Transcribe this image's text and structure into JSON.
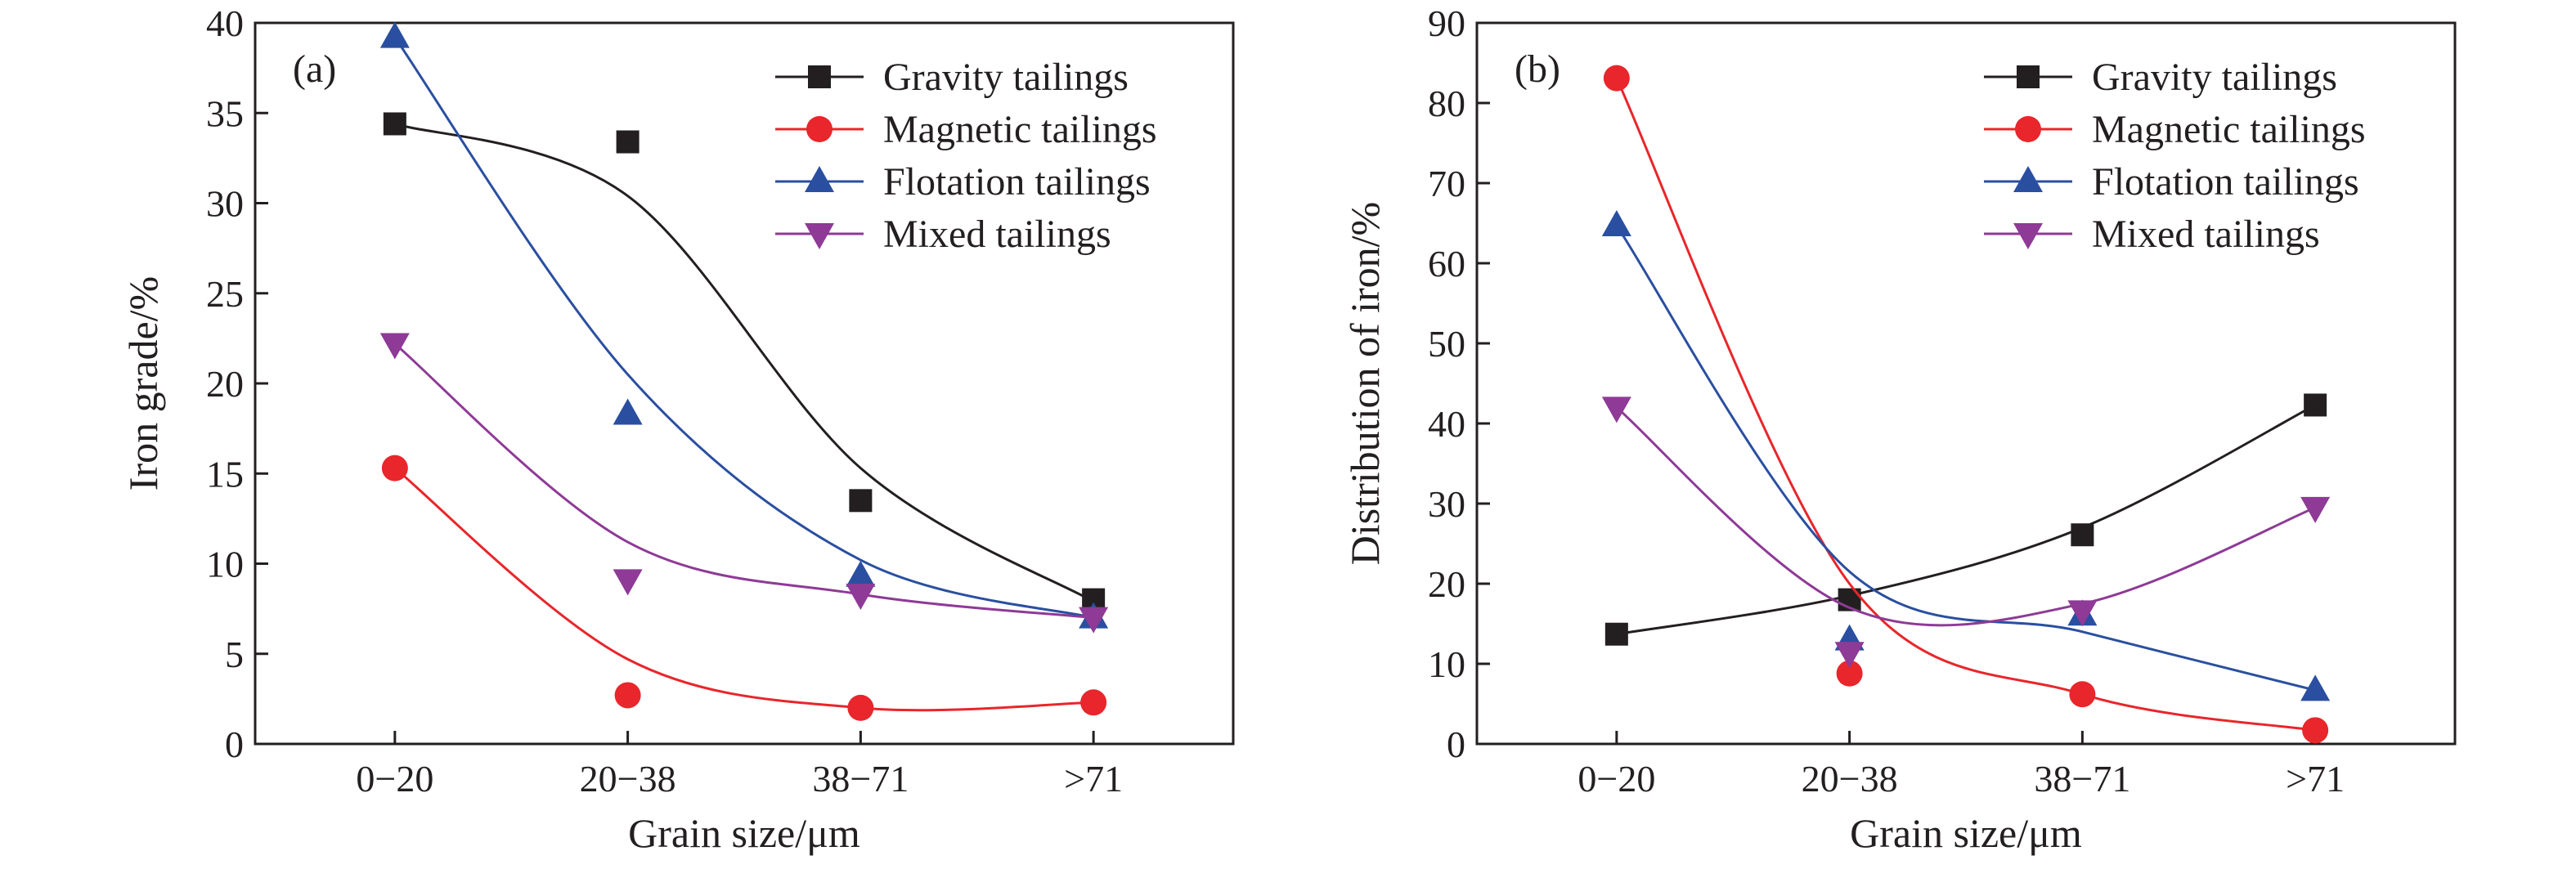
{
  "chart_data": [
    {
      "type": "scatter",
      "panel_label": "(a)",
      "xlabel": "Grain size/μm",
      "ylabel": "Iron grade/%",
      "categories": [
        "0−20",
        "20−38",
        "38−71",
        ">71"
      ],
      "ylim": [
        0,
        40
      ],
      "yticks": [
        "0",
        "5",
        "10",
        "15",
        "20",
        "25",
        "30",
        "35",
        "40"
      ],
      "legend_position": "top-right",
      "grid": false,
      "series": [
        {
          "name": "Gravity tailings",
          "color": "#231f20",
          "marker": "square",
          "values": [
            34.4,
            33.4,
            13.5,
            8.0
          ],
          "curve": [
            34.4,
            30.4,
            15.3,
            7.9
          ]
        },
        {
          "name": "Magnetic tailings",
          "color": "#e8262b",
          "marker": "circle",
          "values": [
            15.3,
            2.7,
            2.0,
            2.3
          ],
          "curve": [
            15.3,
            4.7,
            2.0,
            2.3
          ]
        },
        {
          "name": "Flotation tailings",
          "color": "#2a4fa0",
          "marker": "triangle-up",
          "values": [
            39.2,
            18.3,
            9.3,
            7.0
          ],
          "curve": [
            39.2,
            20.5,
            10.2,
            7.0
          ]
        },
        {
          "name": "Mixed tailings",
          "color": "#8e3a96",
          "marker": "triangle-down",
          "values": [
            22.2,
            9.1,
            8.3,
            7.0
          ],
          "curve": [
            22.2,
            11.2,
            8.3,
            7.0
          ]
        }
      ]
    },
    {
      "type": "scatter",
      "panel_label": "(b)",
      "xlabel": "Grain size/μm",
      "ylabel": "Distribution of iron/%",
      "categories": [
        "0−20",
        "20−38",
        "38−71",
        ">71"
      ],
      "ylim": [
        0,
        90
      ],
      "yticks": [
        "0",
        "10",
        "20",
        "30",
        "40",
        "50",
        "60",
        "70",
        "80",
        "90"
      ],
      "legend_position": "top-right",
      "grid": false,
      "series": [
        {
          "name": "Gravity tailings",
          "color": "#231f20",
          "marker": "square",
          "values": [
            13.7,
            18.0,
            26.1,
            42.3
          ],
          "curve": [
            13.7,
            18.5,
            27.0,
            42.3
          ]
        },
        {
          "name": "Magnetic tailings",
          "color": "#e8262b",
          "marker": "circle",
          "values": [
            83.1,
            8.8,
            6.2,
            1.7
          ],
          "curve": [
            83.1,
            20.0,
            6.2,
            1.7
          ]
        },
        {
          "name": "Flotation tailings",
          "color": "#2a4fa0",
          "marker": "triangle-up",
          "values": [
            64.7,
            13.0,
            16.1,
            6.7
          ],
          "curve": [
            64.7,
            21.5,
            14.0,
            6.7
          ]
        },
        {
          "name": "Mixed tailings",
          "color": "#8e3a96",
          "marker": "triangle-down",
          "values": [
            42.0,
            11.4,
            16.6,
            29.5
          ],
          "curve": [
            42.0,
            17.0,
            17.5,
            29.5
          ]
        }
      ]
    }
  ]
}
